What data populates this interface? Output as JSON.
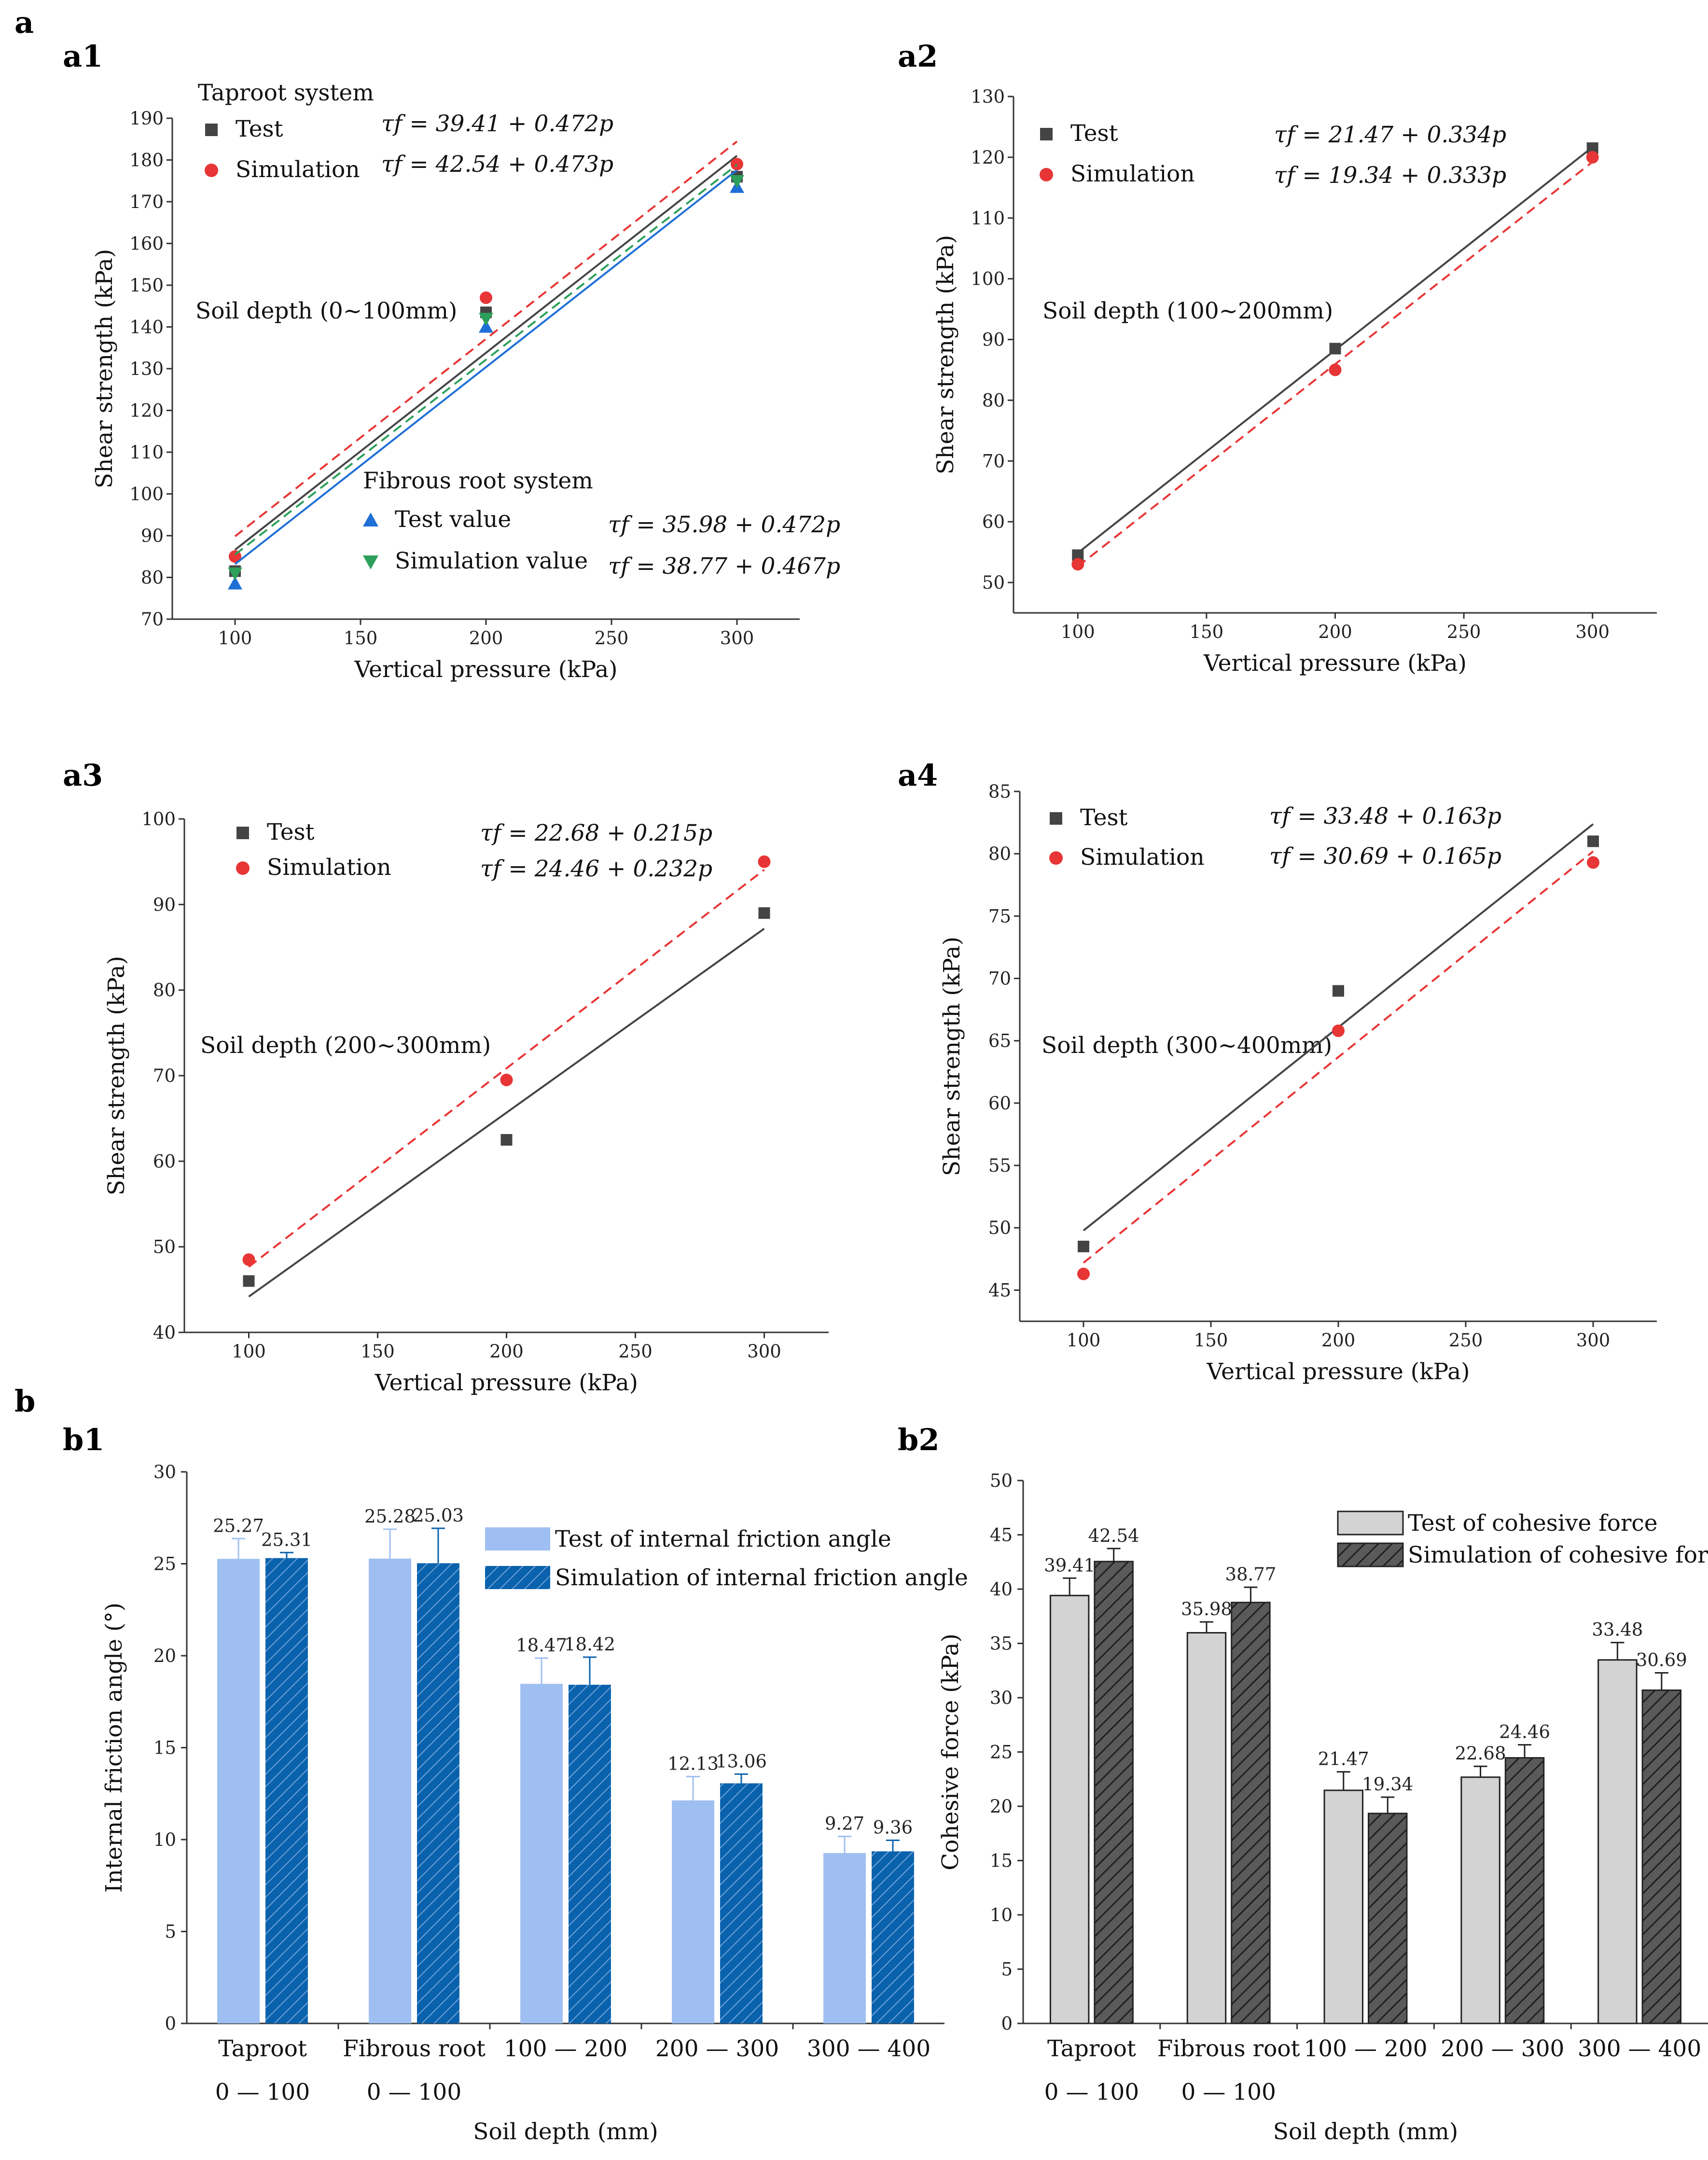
{
  "section_a_label": "a",
  "section_b_label": "b",
  "chart_data": [
    {
      "id": "a1",
      "type": "scatter",
      "xlabel": "Vertical pressure (kPa)",
      "ylabel": "Shear strength (kPa)",
      "xlim": [
        75,
        325
      ],
      "ylim": [
        70,
        190
      ],
      "xticks": [
        100,
        150,
        200,
        250,
        300
      ],
      "yticks": [
        70,
        80,
        90,
        100,
        110,
        120,
        130,
        140,
        150,
        160,
        170,
        180,
        190
      ],
      "note": "Soil depth (0~100mm)",
      "group1_title": "Taproot system",
      "group2_title": "Fibrous root system",
      "series": [
        {
          "name": "Test",
          "group": 1,
          "marker": "square",
          "color": "#444444",
          "line": "solid",
          "x": [
            100,
            200,
            300
          ],
          "y": [
            81.5,
            143.5,
            176
          ],
          "fit": {
            "a": 39.41,
            "b": 0.472
          },
          "equation": "τf = 39.41 + 0.472p"
        },
        {
          "name": "Simulation",
          "group": 1,
          "marker": "circle",
          "color": "#e83535",
          "line": "dashed",
          "x": [
            100,
            200,
            300
          ],
          "y": [
            85,
            147,
            179
          ],
          "fit": {
            "a": 42.54,
            "b": 0.473
          },
          "equation": "τf = 42.54 + 0.473p"
        },
        {
          "name": "Test value",
          "group": 2,
          "marker": "triangle-up",
          "color": "#1f6fd6",
          "line": "solid",
          "x": [
            100,
            200,
            300
          ],
          "y": [
            78.5,
            140,
            173.5
          ],
          "fit": {
            "a": 35.98,
            "b": 0.472
          },
          "equation": "τf = 35.98 + 0.472p"
        },
        {
          "name": "Simulation value",
          "group": 2,
          "marker": "triangle-down",
          "color": "#2ca05a",
          "line": "dashed",
          "x": [
            100,
            200,
            300
          ],
          "y": [
            81,
            142,
            175
          ],
          "fit": {
            "a": 38.77,
            "b": 0.467
          },
          "equation": "τf = 38.77 + 0.467p"
        }
      ]
    },
    {
      "id": "a2",
      "type": "scatter",
      "xlabel": "Vertical pressure (kPa)",
      "ylabel": "Shear strength (kPa)",
      "xlim": [
        75,
        325
      ],
      "ylim": [
        45,
        130
      ],
      "xticks": [
        100,
        150,
        200,
        250,
        300
      ],
      "yticks": [
        50,
        60,
        70,
        80,
        90,
        100,
        110,
        120,
        130
      ],
      "note": "Soil depth (100~200mm)",
      "series": [
        {
          "name": "Test",
          "marker": "square",
          "color": "#444444",
          "line": "solid",
          "x": [
            100,
            200,
            300
          ],
          "y": [
            54.5,
            88.5,
            121.5
          ],
          "fit": {
            "a": 21.47,
            "b": 0.334
          },
          "equation": "τf = 21.47 + 0.334p"
        },
        {
          "name": "Simulation",
          "marker": "circle",
          "color": "#e83535",
          "line": "dashed",
          "x": [
            100,
            200,
            300
          ],
          "y": [
            53,
            85,
            120
          ],
          "fit": {
            "a": 19.34,
            "b": 0.333
          },
          "equation": "τf = 19.34 + 0.333p"
        }
      ]
    },
    {
      "id": "a3",
      "type": "scatter",
      "xlabel": "Vertical pressure (kPa)",
      "ylabel": "Shear strength (kPa)",
      "xlim": [
        75,
        325
      ],
      "ylim": [
        40,
        100
      ],
      "xticks": [
        100,
        150,
        200,
        250,
        300
      ],
      "yticks": [
        40,
        50,
        60,
        70,
        80,
        90,
        100
      ],
      "note": "Soil depth (200~300mm)",
      "series": [
        {
          "name": "Test",
          "marker": "square",
          "color": "#444444",
          "line": "solid",
          "x": [
            100,
            200,
            300
          ],
          "y": [
            46,
            62.5,
            89
          ],
          "fit": {
            "a": 22.68,
            "b": 0.215
          },
          "equation": "τf = 22.68 + 0.215p"
        },
        {
          "name": "Simulation",
          "marker": "circle",
          "color": "#e83535",
          "line": "dashed",
          "x": [
            100,
            200,
            300
          ],
          "y": [
            48.5,
            69.5,
            95
          ],
          "fit": {
            "a": 24.46,
            "b": 0.232
          },
          "equation": "τf = 24.46 + 0.232p"
        }
      ]
    },
    {
      "id": "a4",
      "type": "scatter",
      "xlabel": "Vertical pressure (kPa)",
      "ylabel": "Shear strength (kPa)",
      "xlim": [
        75,
        325
      ],
      "ylim": [
        42.5,
        85
      ],
      "xticks": [
        100,
        150,
        200,
        250,
        300
      ],
      "yticks": [
        45,
        50,
        55,
        60,
        65,
        70,
        75,
        80,
        85
      ],
      "note": "Soil depth (300~400mm)",
      "series": [
        {
          "name": "Test",
          "marker": "square",
          "color": "#444444",
          "line": "solid",
          "x": [
            100,
            200,
            300
          ],
          "y": [
            48.5,
            69,
            81
          ],
          "fit": {
            "a": 33.48,
            "b": 0.163
          },
          "equation": "τf = 33.48 + 0.163p"
        },
        {
          "name": "Simulation",
          "marker": "circle",
          "color": "#e83535",
          "line": "dashed",
          "x": [
            100,
            200,
            300
          ],
          "y": [
            46.3,
            65.8,
            79.3
          ],
          "fit": {
            "a": 30.69,
            "b": 0.165
          },
          "equation": "τf = 30.69 + 0.165p"
        }
      ]
    },
    {
      "id": "b1",
      "type": "bar",
      "xlabel": "Soil depth (mm)",
      "ylabel": "Internal friction angle (°)",
      "ylim": [
        0,
        30
      ],
      "yticks": [
        0,
        5,
        10,
        15,
        20,
        25,
        30
      ],
      "categories": [
        [
          "Taproot",
          "0 — 100"
        ],
        [
          "Fibrous root",
          "0 — 100"
        ],
        [
          "100 — 200",
          ""
        ],
        [
          "200 — 300",
          ""
        ],
        [
          "300 — 400",
          ""
        ]
      ],
      "series": [
        {
          "name": "Test of internal friction angle",
          "color": "#9fbff2",
          "hatch": false,
          "values": [
            25.27,
            25.28,
            18.47,
            12.13,
            9.27
          ],
          "labels": [
            "25.27",
            "25.28",
            "18.47",
            "12.13",
            "9.27"
          ],
          "errors": [
            1.1,
            1.6,
            1.4,
            1.3,
            0.9
          ]
        },
        {
          "name": "Simulation of internal friction angle",
          "color": "#0a62ad",
          "hatch": true,
          "values": [
            25.31,
            25.03,
            18.42,
            13.06,
            9.36
          ],
          "labels": [
            "25.31",
            "25.03",
            "18.42",
            "13.06",
            "9.36"
          ],
          "errors": [
            0.3,
            1.9,
            1.5,
            0.5,
            0.6
          ]
        }
      ]
    },
    {
      "id": "b2",
      "type": "bar",
      "xlabel": "Soil depth (mm)",
      "ylabel": "Cohesive force (kPa)",
      "ylim": [
        0,
        50
      ],
      "yticks": [
        0,
        5,
        10,
        15,
        20,
        25,
        30,
        35,
        40,
        45,
        50
      ],
      "categories": [
        [
          "Taproot",
          "0 — 100"
        ],
        [
          "Fibrous root",
          "0 — 100"
        ],
        [
          "100 — 200",
          ""
        ],
        [
          "200 — 300",
          ""
        ],
        [
          "300 — 400",
          ""
        ]
      ],
      "series": [
        {
          "name": "Test of cohesive force",
          "color": "#d3d3d3",
          "hatch": false,
          "values": [
            39.41,
            35.98,
            21.47,
            22.68,
            33.48
          ],
          "labels": [
            "39.41",
            "35.98",
            "21.47",
            "22.68",
            "33.48"
          ],
          "errors": [
            1.6,
            1.0,
            1.7,
            1.0,
            1.6
          ]
        },
        {
          "name": "Simulation of cohesive force",
          "color": "#555555",
          "hatch": true,
          "values": [
            42.54,
            38.77,
            19.34,
            24.46,
            30.69
          ],
          "labels": [
            "42.54",
            "38.77",
            "19.34",
            "24.46",
            "30.69"
          ],
          "errors": [
            1.2,
            1.4,
            1.5,
            1.2,
            1.6
          ]
        }
      ]
    }
  ]
}
